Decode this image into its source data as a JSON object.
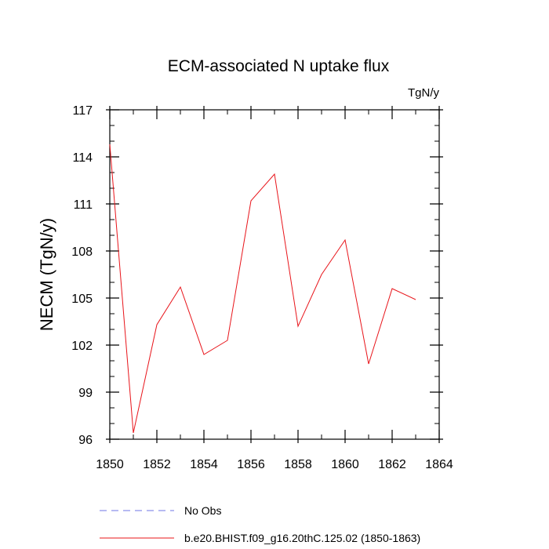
{
  "chart_data": {
    "type": "line",
    "title": "ECM-associated N uptake flux",
    "units_label": "TgN/y",
    "xlabel": "",
    "ylabel": "NECM  (TgN/y)",
    "xlim": [
      1850,
      1864
    ],
    "ylim": [
      96,
      117
    ],
    "x_ticks": [
      1850,
      1852,
      1854,
      1856,
      1858,
      1860,
      1862,
      1864
    ],
    "y_ticks": [
      96,
      99,
      102,
      105,
      108,
      111,
      114,
      117
    ],
    "x_minor_step": 1,
    "y_minor_step": 1,
    "grid": false,
    "series": [
      {
        "name": "b.e20.BHIST.f09_g16.20thC.125.02 (1850-1863)",
        "color": "#e8141a",
        "style": "solid",
        "x": [
          1850,
          1851,
          1852,
          1853,
          1854,
          1855,
          1856,
          1857,
          1858,
          1859,
          1860,
          1861,
          1862,
          1863
        ],
        "values": [
          114.8,
          96.4,
          103.3,
          105.7,
          101.4,
          102.3,
          111.2,
          112.9,
          103.2,
          106.5,
          108.7,
          100.8,
          105.6,
          104.9
        ]
      }
    ],
    "legend": [
      {
        "label": "No Obs",
        "color": "#6f74e6",
        "style": "dashed"
      },
      {
        "label": "b.e20.BHIST.f09_g16.20thC.125.02 (1850-1863)",
        "color": "#e8141a",
        "style": "solid"
      }
    ],
    "legend_position": "bottom"
  }
}
